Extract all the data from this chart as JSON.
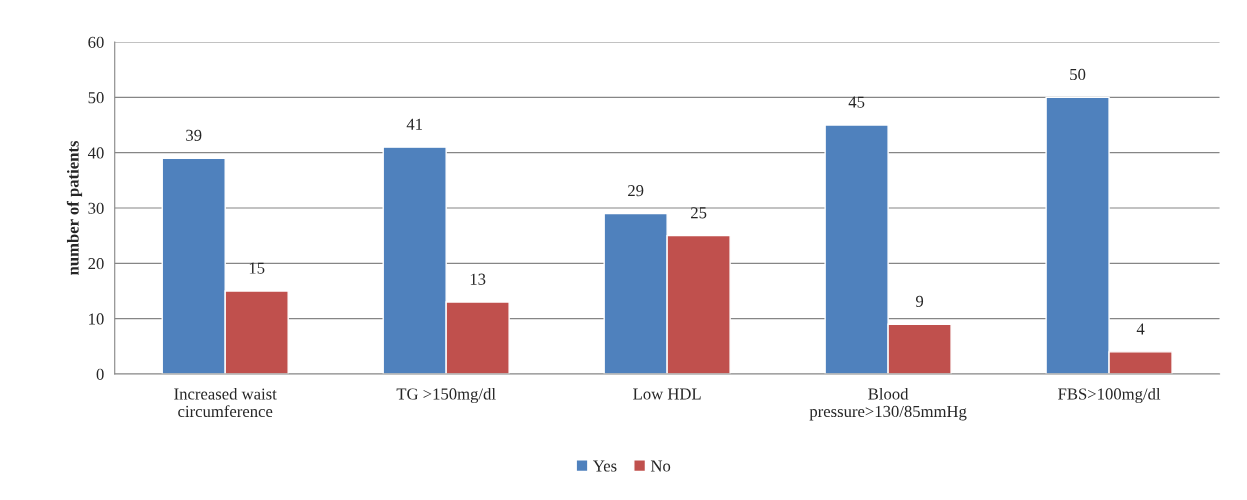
{
  "chart_data": {
    "type": "bar",
    "ylabel": "number of patients",
    "categories": [
      "Increased waist\ncircumference",
      "TG >150mg/dl",
      "Low HDL",
      "Blood\npressure>130/85mmHg",
      "FBS>100mg/dl"
    ],
    "series": [
      {
        "name": "Yes",
        "color": "#4f81bd",
        "values": [
          39,
          41,
          29,
          45,
          50
        ]
      },
      {
        "name": "No",
        "color": "#c0504d",
        "values": [
          15,
          13,
          25,
          9,
          4
        ]
      }
    ],
    "ylim": [
      0,
      60
    ],
    "yticks": [
      0,
      10,
      20,
      30,
      40,
      50,
      60
    ],
    "grid": "y",
    "legend": "bottom",
    "data_labels": true
  }
}
